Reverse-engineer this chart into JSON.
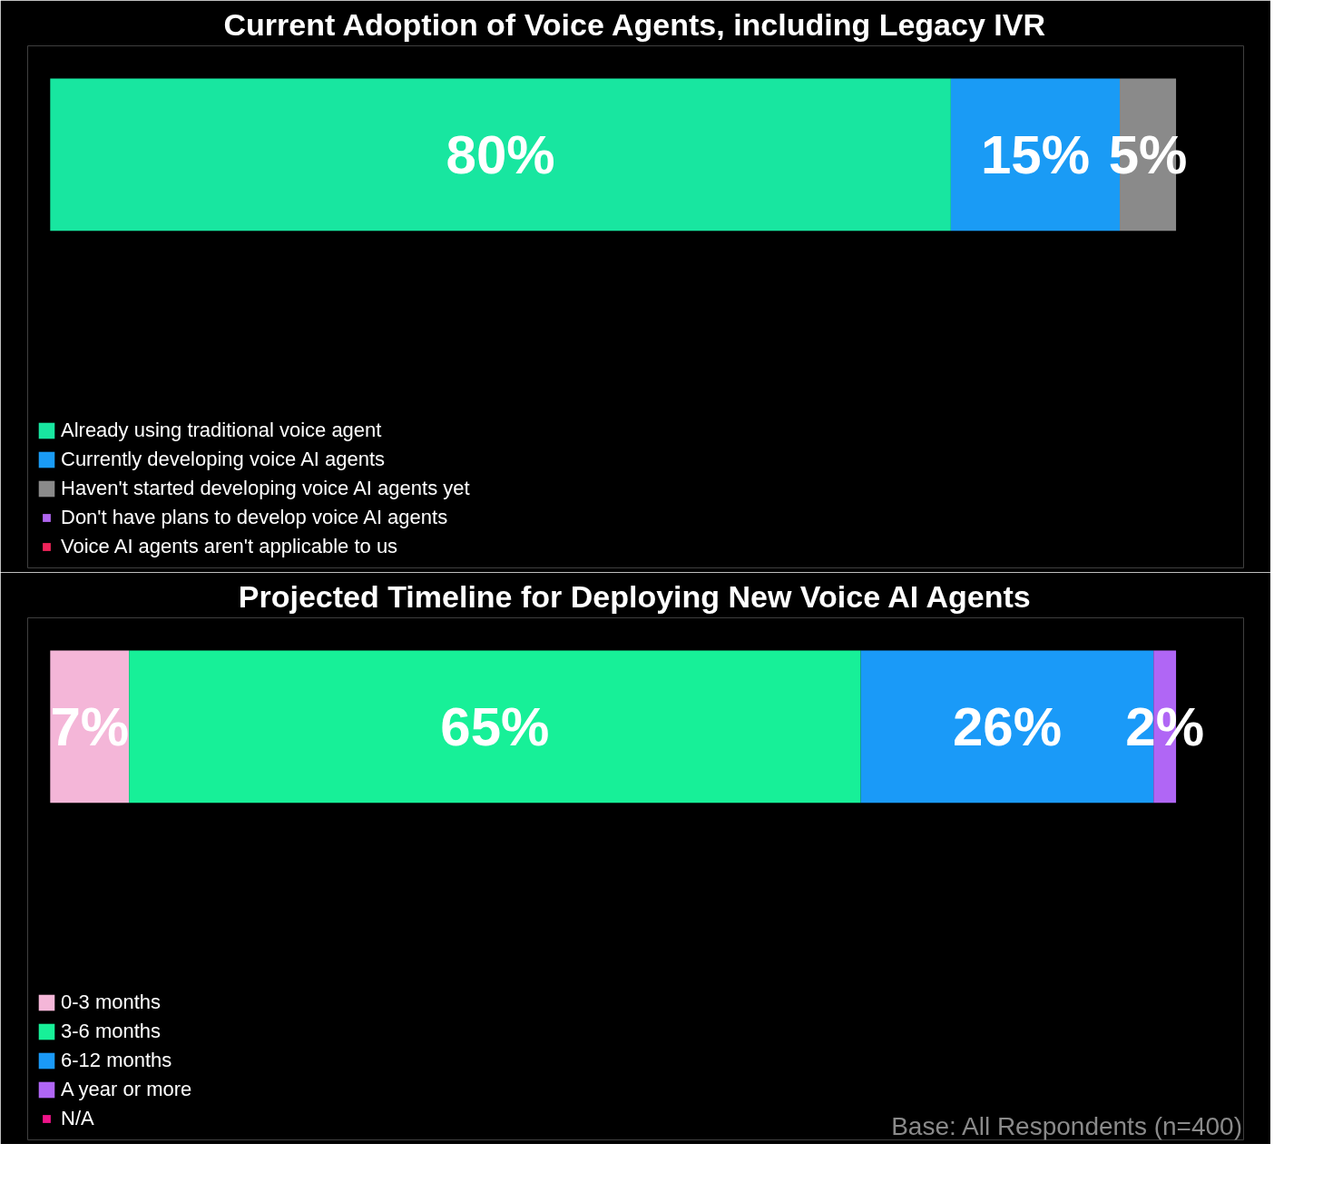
{
  "chart_data": [
    {
      "type": "bar",
      "orientation": "horizontal",
      "stacked": true,
      "title": "Current Adoption of Voice Agents, including Legacy IVR",
      "categories": [
        null
      ],
      "tick_labels": false,
      "legend": "bottom left",
      "series": [
        {
          "name": "Already using traditional voice agent",
          "color": "#18e6a0",
          "values": [
            80
          ],
          "value_labels": [
            "80%"
          ]
        },
        {
          "name": "Currently developing voice AI agents",
          "color": "#1a9bf5",
          "values": [
            15
          ],
          "value_labels": [
            "15%"
          ]
        },
        {
          "name": "Haven't started developing voice AI agents yet",
          "color": "#8a8a8a",
          "values": [
            5
          ],
          "value_labels": [
            "5%"
          ]
        },
        {
          "name": "Don't have plans to develop voice AI agents",
          "color": "#b065f0",
          "values": [
            null
          ]
        },
        {
          "name": "Voice AI agents aren't applicable to us",
          "color": "#f0245a",
          "values": [
            null
          ]
        }
      ]
    },
    {
      "type": "bar",
      "orientation": "horizontal",
      "stacked": true,
      "title": "Projected Timeline for Deploying New Voice AI Agents",
      "categories": [
        null
      ],
      "tick_labels": false,
      "legend": "bottom left",
      "annotations": [
        "Base: All Respondents (n=400)"
      ],
      "series": [
        {
          "name": "0-3 months",
          "color": "#f4b6d8",
          "values": [
            7
          ],
          "value_labels": [
            "7%"
          ]
        },
        {
          "name": "3-6 months",
          "color": "#17f098",
          "values": [
            65
          ],
          "value_labels": [
            "65%"
          ]
        },
        {
          "name": "6-12 months",
          "color": "#1a9af8",
          "values": [
            26
          ],
          "value_labels": [
            "26%"
          ]
        },
        {
          "name": "A year or more",
          "color": "#b066f5",
          "values": [
            2
          ],
          "value_labels": [
            "2%"
          ]
        },
        {
          "name": "N/A",
          "color": "#f0148a",
          "values": [
            null
          ]
        }
      ]
    }
  ]
}
